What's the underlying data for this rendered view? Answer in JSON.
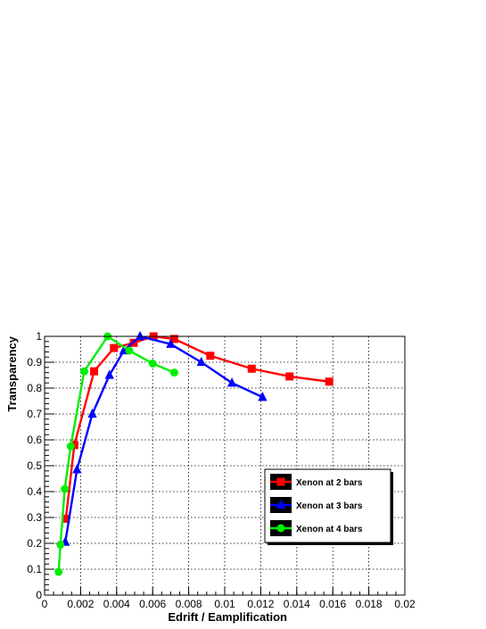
{
  "chart_data": {
    "type": "line",
    "xlabel": "Edrift / Eamplification",
    "ylabel": "Transparency",
    "xlim": [
      0,
      0.02
    ],
    "ylim": [
      0,
      1
    ],
    "x_ticks": [
      0,
      0.002,
      0.004,
      0.006,
      0.008,
      0.01,
      0.012,
      0.014,
      0.016,
      0.018,
      0.02
    ],
    "x_tick_labels": [
      "0",
      "0.002",
      "0.004",
      "0.006",
      "0.008",
      "0.01",
      "0.012",
      "0.014",
      "0.016",
      "0.018",
      "0.02"
    ],
    "y_ticks": [
      0,
      0.1,
      0.2,
      0.3,
      0.4,
      0.5,
      0.6,
      0.7,
      0.8,
      0.9,
      1
    ],
    "y_tick_labels": [
      "0",
      "0.1",
      "0.2",
      "0.3",
      "0.4",
      "0.5",
      "0.6",
      "0.7",
      "0.8",
      "0.9",
      "1"
    ],
    "grid": true,
    "legend_position": "lower-right",
    "series": [
      {
        "name": "Xenon at 2 bars",
        "color": "#ff0000",
        "marker": "square",
        "x": [
          0.00118,
          0.00165,
          0.00275,
          0.00385,
          0.00495,
          0.00605,
          0.0072,
          0.0092,
          0.0115,
          0.0136,
          0.0158
        ],
        "y": [
          0.295,
          0.58,
          0.865,
          0.955,
          0.975,
          1.0,
          0.99,
          0.925,
          0.875,
          0.845,
          0.825
        ]
      },
      {
        "name": "Xenon at 3 bars",
        "color": "#0000ff",
        "marker": "triangle",
        "x": [
          0.00115,
          0.0018,
          0.00265,
          0.0036,
          0.0044,
          0.0053,
          0.007,
          0.0087,
          0.0104,
          0.0121
        ],
        "y": [
          0.205,
          0.485,
          0.7,
          0.85,
          0.945,
          1.0,
          0.97,
          0.9,
          0.82,
          0.765
        ]
      },
      {
        "name": "Xenon at 4 bars",
        "color": "#00ee00",
        "marker": "circle",
        "x": [
          0.00078,
          0.00088,
          0.00112,
          0.00145,
          0.0022,
          0.0035,
          0.0047,
          0.006,
          0.0072
        ],
        "y": [
          0.09,
          0.195,
          0.41,
          0.575,
          0.865,
          1.0,
          0.945,
          0.895,
          0.86
        ]
      }
    ]
  }
}
